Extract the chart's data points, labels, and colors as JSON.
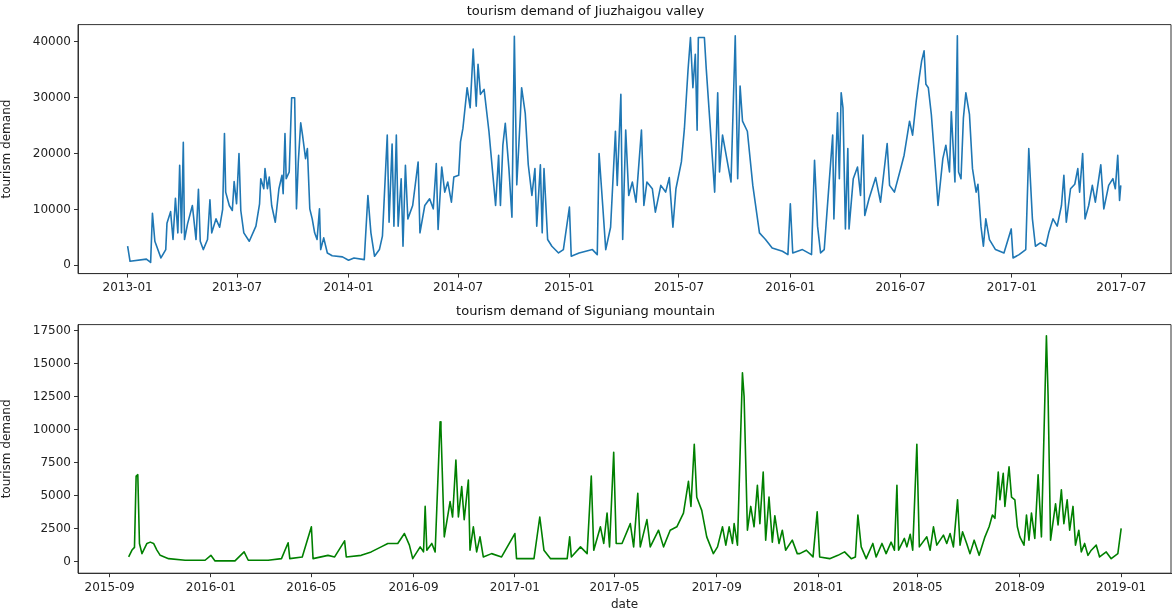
{
  "chart_data": [
    {
      "type": "line",
      "title": "tourism demand of Jiuzhaigou valley",
      "ylabel": "tourism demand",
      "x": [
        "2013-01-01",
        "2013-01-05",
        "2013-02-01",
        "2013-02-08",
        "2013-02-11",
        "2013-02-15",
        "2013-02-25",
        "2013-03-05",
        "2013-03-07",
        "2013-03-13",
        "2013-03-17",
        "2013-03-21",
        "2013-03-25",
        "2013-03-28",
        "2013-03-31",
        "2013-04-03",
        "2013-04-05",
        "2013-04-10",
        "2013-04-18",
        "2013-04-24",
        "2013-04-28",
        "2013-05-01",
        "2013-05-06",
        "2013-05-13",
        "2013-05-17",
        "2013-05-20",
        "2013-05-27",
        "2013-06-02",
        "2013-06-07",
        "2013-06-10",
        "2013-06-12",
        "2013-06-18",
        "2013-06-23",
        "2013-06-26",
        "2013-06-30",
        "2013-07-04",
        "2013-07-07",
        "2013-07-12",
        "2013-07-21",
        "2013-08-01",
        "2013-08-07",
        "2013-08-09",
        "2013-08-14",
        "2013-08-16",
        "2013-08-20",
        "2013-08-23",
        "2013-08-27",
        "2013-09-02",
        "2013-09-08",
        "2013-09-13",
        "2013-09-15",
        "2013-09-18",
        "2013-09-20",
        "2013-09-25",
        "2013-09-29",
        "2013-10-04",
        "2013-10-07",
        "2013-10-10",
        "2013-10-14",
        "2013-10-17",
        "2013-10-22",
        "2013-10-25",
        "2013-10-29",
        "2013-11-02",
        "2013-11-06",
        "2013-11-10",
        "2013-11-14",
        "2013-11-16",
        "2013-11-21",
        "2013-11-27",
        "2013-12-05",
        "2013-12-22",
        "2014-01-01",
        "2014-01-10",
        "2014-01-27",
        "2014-02-02",
        "2014-02-07",
        "2014-02-13",
        "2014-02-21",
        "2014-02-26",
        "2014-03-06",
        "2014-03-09",
        "2014-03-14",
        "2014-03-17",
        "2014-03-21",
        "2014-03-24",
        "2014-03-29",
        "2014-04-01",
        "2014-04-05",
        "2014-04-09",
        "2014-04-17",
        "2014-04-26",
        "2014-04-29",
        "2014-05-07",
        "2014-05-15",
        "2014-05-21",
        "2014-05-26",
        "2014-05-29",
        "2014-06-04",
        "2014-06-09",
        "2014-06-14",
        "2014-06-20",
        "2014-06-24",
        "2014-07-02",
        "2014-07-05",
        "2014-07-09",
        "2014-07-16",
        "2014-07-21",
        "2014-07-26",
        "2014-07-31",
        "2014-08-03",
        "2014-08-07",
        "2014-08-13",
        "2014-08-21",
        "2014-08-29",
        "2014-09-01",
        "2014-09-06",
        "2014-09-09",
        "2014-09-13",
        "2014-09-17",
        "2014-09-23",
        "2014-09-28",
        "2014-10-02",
        "2014-10-06",
        "2014-10-12",
        "2014-10-14",
        "2014-10-20",
        "2014-10-25",
        "2014-10-31",
        "2014-11-05",
        "2014-11-08",
        "2014-11-14",
        "2014-11-17",
        "2014-11-20",
        "2014-11-26",
        "2014-12-03",
        "2014-12-14",
        "2014-12-22",
        "2015-01-01",
        "2015-01-04",
        "2015-01-17",
        "2015-02-08",
        "2015-02-16",
        "2015-02-19",
        "2015-02-25",
        "2015-03-02",
        "2015-03-10",
        "2015-03-18",
        "2015-03-21",
        "2015-03-27",
        "2015-03-30",
        "2015-04-04",
        "2015-04-09",
        "2015-04-15",
        "2015-04-21",
        "2015-04-30",
        "2015-05-04",
        "2015-05-09",
        "2015-05-18",
        "2015-05-23",
        "2015-06-01",
        "2015-06-09",
        "2015-06-15",
        "2015-06-21",
        "2015-06-26",
        "2015-07-05",
        "2015-07-10",
        "2015-07-16",
        "2015-07-20",
        "2015-07-24",
        "2015-07-28",
        "2015-07-31",
        "2015-08-02",
        "2015-08-12",
        "2015-08-15",
        "2015-08-23",
        "2015-08-29",
        "2015-09-03",
        "2015-09-06",
        "2015-09-11",
        "2015-09-18",
        "2015-09-25",
        "2015-10-02",
        "2015-10-06",
        "2015-10-10",
        "2015-10-14",
        "2015-10-22",
        "2015-10-31",
        "2015-11-11",
        "2015-11-21",
        "2015-12-02",
        "2015-12-19",
        "2015-12-28",
        "2016-01-01",
        "2016-01-05",
        "2016-01-21",
        "2016-02-05",
        "2016-02-10",
        "2016-02-15",
        "2016-02-20",
        "2016-02-26",
        "2016-03-04",
        "2016-03-11",
        "2016-03-13",
        "2016-03-19",
        "2016-03-22",
        "2016-03-25",
        "2016-03-28",
        "2016-04-01",
        "2016-04-05",
        "2016-04-07",
        "2016-04-14",
        "2016-04-21",
        "2016-04-26",
        "2016-04-30",
        "2016-05-03",
        "2016-05-10",
        "2016-05-21",
        "2016-05-29",
        "2016-06-09",
        "2016-06-13",
        "2016-06-21",
        "2016-07-02",
        "2016-07-07",
        "2016-07-16",
        "2016-07-21",
        "2016-07-27",
        "2016-08-01",
        "2016-08-05",
        "2016-08-09",
        "2016-08-12",
        "2016-08-16",
        "2016-08-21",
        "2016-08-29",
        "2016-09-01",
        "2016-09-09",
        "2016-09-14",
        "2016-09-20",
        "2016-09-23",
        "2016-09-29",
        "2016-10-03",
        "2016-10-05",
        "2016-10-09",
        "2016-10-13",
        "2016-10-17",
        "2016-10-23",
        "2016-10-28",
        "2016-11-03",
        "2016-11-06",
        "2016-11-11",
        "2016-11-15",
        "2016-11-19",
        "2016-11-25",
        "2016-12-05",
        "2016-12-19",
        "2016-12-31",
        "2017-01-03",
        "2017-01-13",
        "2017-01-24",
        "2017-01-29",
        "2017-02-04",
        "2017-02-09",
        "2017-02-17",
        "2017-02-26",
        "2017-03-03",
        "2017-03-10",
        "2017-03-17",
        "2017-03-24",
        "2017-03-28",
        "2017-04-01",
        "2017-04-08",
        "2017-04-15",
        "2017-04-20",
        "2017-04-23",
        "2017-04-28",
        "2017-05-02",
        "2017-05-08",
        "2017-05-14",
        "2017-05-19",
        "2017-05-28",
        "2017-06-02",
        "2017-06-10",
        "2017-06-17",
        "2017-06-21",
        "2017-06-25",
        "2017-06-28",
        "2017-06-30"
      ],
      "series": [
        {
          "color": "#1f77b4",
          "values": [
            3400,
            700,
            1100,
            500,
            9300,
            4300,
            1300,
            2800,
            7500,
            9600,
            4600,
            12000,
            5800,
            17900,
            5800,
            22000,
            4600,
            7400,
            10700,
            4600,
            13600,
            4300,
            2800,
            4600,
            11700,
            5800,
            8300,
            6800,
            10000,
            23600,
            13100,
            10700,
            9800,
            15000,
            11000,
            20000,
            9800,
            5800,
            4300,
            7000,
            11000,
            15500,
            13700,
            17300,
            13700,
            15800,
            10700,
            7700,
            13700,
            16100,
            12800,
            23600,
            15500,
            16700,
            30000,
            30000,
            10100,
            18500,
            25500,
            23300,
            19100,
            20900,
            10100,
            8300,
            5800,
            4600,
            10100,
            2800,
            4900,
            2200,
            1700,
            1500,
            900,
            1300,
            1000,
            12500,
            5800,
            1600,
            2800,
            5200,
            23300,
            7700,
            21700,
            7000,
            23300,
            7000,
            15500,
            3400,
            17900,
            8300,
            10700,
            18500,
            5800,
            10700,
            11900,
            10100,
            18200,
            6400,
            17600,
            13100,
            14900,
            11300,
            15800,
            16100,
            22100,
            24500,
            31800,
            28200,
            38700,
            28500,
            36000,
            30600,
            31500,
            24000,
            14400,
            10700,
            19700,
            10700,
            21500,
            25400,
            17300,
            8600,
            41000,
            14400,
            27000,
            31800,
            27200,
            18000,
            12500,
            17300,
            7000,
            18000,
            5800,
            17300,
            4600,
            3400,
            2200,
            2800,
            10400,
            1600,
            2200,
            2800,
            1900,
            20000,
            10700,
            2800,
            6800,
            24000,
            14300,
            30600,
            4600,
            24200,
            12500,
            14900,
            11300,
            24200,
            10700,
            14900,
            13700,
            9500,
            14300,
            13100,
            15700,
            6800,
            13700,
            18500,
            24500,
            35000,
            40800,
            31800,
            37800,
            24200,
            40800,
            40800,
            35300,
            22700,
            13100,
            30900,
            16700,
            23300,
            19100,
            14900,
            41100,
            15500,
            32100,
            25800,
            24000,
            14300,
            5800,
            4600,
            3100,
            2500,
            1900,
            11000,
            2200,
            2800,
            1900,
            18800,
            7000,
            2200,
            2800,
            13100,
            23300,
            8300,
            27300,
            15500,
            30900,
            28200,
            6500,
            20900,
            6500,
            15500,
            17600,
            12500,
            23300,
            8900,
            11900,
            15700,
            11300,
            21800,
            14300,
            13100,
            17600,
            19700,
            25800,
            23300,
            29400,
            33600,
            36600,
            38400,
            32400,
            31800,
            27000,
            15500,
            10700,
            19100,
            21500,
            16700,
            27500,
            14900,
            41100,
            16700,
            15500,
            26400,
            30900,
            27000,
            17300,
            13100,
            14500,
            7000,
            3400,
            8300,
            4600,
            2800,
            2200,
            6500,
            1300,
            1900,
            2800,
            20900,
            8300,
            3400,
            4000,
            3400,
            5800,
            8300,
            7000,
            10700,
            16100,
            7700,
            13700,
            14500,
            17300,
            13100,
            20000,
            8300,
            10700,
            14300,
            11300,
            18000,
            10100,
            14300,
            15500,
            13700,
            19700,
            11600,
            14300
          ]
        }
      ],
      "xlim": [
        "2012-10-11",
        "2017-09-21"
      ],
      "ylim": [
        -1500,
        43100
      ],
      "xticks": [
        "2013-01",
        "2013-07",
        "2014-01",
        "2014-07",
        "2015-01",
        "2015-07",
        "2016-01",
        "2016-07",
        "2017-01",
        "2017-07"
      ],
      "yticks": [
        0,
        10000,
        20000,
        30000,
        40000
      ]
    },
    {
      "type": "line",
      "title": "tourism demand of Siguniang mountain",
      "xlabel": "date",
      "ylabel": "tourism demand",
      "x": [
        "2015-09-24",
        "2015-09-28",
        "2015-10-01",
        "2015-10-03",
        "2015-10-05",
        "2015-10-07",
        "2015-10-10",
        "2015-10-16",
        "2015-10-20",
        "2015-10-24",
        "2015-10-28",
        "2015-11-01",
        "2015-11-11",
        "2015-12-01",
        "2015-12-25",
        "2016-01-01",
        "2016-01-06",
        "2016-01-30",
        "2016-02-10",
        "2016-02-15",
        "2016-03-10",
        "2016-03-26",
        "2016-04-03",
        "2016-04-05",
        "2016-04-20",
        "2016-05-01",
        "2016-05-03",
        "2016-05-21",
        "2016-05-29",
        "2016-06-10",
        "2016-06-12",
        "2016-06-30",
        "2016-07-12",
        "2016-07-24",
        "2016-08-01",
        "2016-08-13",
        "2016-08-21",
        "2016-08-27",
        "2016-08-31",
        "2016-09-09",
        "2016-09-13",
        "2016-09-15",
        "2016-09-17",
        "2016-09-23",
        "2016-09-27",
        "2016-10-03",
        "2016-10-04",
        "2016-10-08",
        "2016-10-15",
        "2016-10-18",
        "2016-10-22",
        "2016-10-25",
        "2016-10-29",
        "2016-11-01",
        "2016-11-06",
        "2016-11-08",
        "2016-11-12",
        "2016-11-16",
        "2016-11-20",
        "2016-11-24",
        "2016-12-04",
        "2016-12-16",
        "2017-01-01",
        "2017-01-03",
        "2017-01-24",
        "2017-01-31",
        "2017-02-05",
        "2017-02-13",
        "2017-03-05",
        "2017-03-08",
        "2017-03-10",
        "2017-03-21",
        "2017-03-29",
        "2017-04-03",
        "2017-04-06",
        "2017-04-14",
        "2017-04-18",
        "2017-04-22",
        "2017-04-25",
        "2017-04-30",
        "2017-05-03",
        "2017-05-10",
        "2017-05-20",
        "2017-05-24",
        "2017-05-29",
        "2017-06-01",
        "2017-06-09",
        "2017-06-13",
        "2017-06-23",
        "2017-06-29",
        "2017-07-07",
        "2017-07-15",
        "2017-07-23",
        "2017-07-29",
        "2017-08-01",
        "2017-08-05",
        "2017-08-08",
        "2017-08-14",
        "2017-08-20",
        "2017-08-28",
        "2017-09-02",
        "2017-09-08",
        "2017-09-12",
        "2017-09-16",
        "2017-09-20",
        "2017-09-22",
        "2017-09-26",
        "2017-10-02",
        "2017-10-04",
        "2017-10-08",
        "2017-10-12",
        "2017-10-16",
        "2017-10-20",
        "2017-10-23",
        "2017-10-27",
        "2017-10-30",
        "2017-11-03",
        "2017-11-07",
        "2017-11-10",
        "2017-11-15",
        "2017-11-19",
        "2017-11-23",
        "2017-12-01",
        "2017-12-07",
        "2017-12-10",
        "2017-12-18",
        "2017-12-26",
        "2017-12-31",
        "2018-01-03",
        "2018-01-15",
        "2018-01-25",
        "2018-02-02",
        "2018-02-10",
        "2018-02-15",
        "2018-02-18",
        "2018-02-22",
        "2018-02-28",
        "2018-03-08",
        "2018-03-12",
        "2018-03-19",
        "2018-03-24",
        "2018-03-30",
        "2018-04-03",
        "2018-04-06",
        "2018-04-08",
        "2018-04-15",
        "2018-04-18",
        "2018-04-22",
        "2018-04-25",
        "2018-04-30",
        "2018-05-03",
        "2018-05-12",
        "2018-05-16",
        "2018-05-20",
        "2018-05-24",
        "2018-06-01",
        "2018-06-05",
        "2018-06-09",
        "2018-06-13",
        "2018-06-18",
        "2018-06-21",
        "2018-06-24",
        "2018-06-29",
        "2018-07-03",
        "2018-07-08",
        "2018-07-14",
        "2018-07-21",
        "2018-07-26",
        "2018-07-30",
        "2018-08-02",
        "2018-08-06",
        "2018-08-08",
        "2018-08-12",
        "2018-08-14",
        "2018-08-19",
        "2018-08-22",
        "2018-08-26",
        "2018-08-29",
        "2018-09-01",
        "2018-09-06",
        "2018-09-09",
        "2018-09-12",
        "2018-09-15",
        "2018-09-19",
        "2018-09-23",
        "2018-09-27",
        "2018-10-03",
        "2018-10-05",
        "2018-10-08",
        "2018-10-14",
        "2018-10-17",
        "2018-10-21",
        "2018-10-24",
        "2018-10-28",
        "2018-10-31",
        "2018-11-04",
        "2018-11-07",
        "2018-11-11",
        "2018-11-14",
        "2018-11-18",
        "2018-11-22",
        "2018-11-26",
        "2018-12-02",
        "2018-12-06",
        "2018-12-14",
        "2018-12-20",
        "2018-12-28",
        "2019-01-01"
      ],
      "series": [
        {
          "color": "#008000",
          "values": [
            380,
            900,
            1100,
            6500,
            6600,
            1400,
            630,
            1400,
            1500,
            1400,
            900,
            500,
            250,
            130,
            130,
            500,
            80,
            80,
            760,
            130,
            130,
            250,
            1450,
            250,
            380,
            2660,
            250,
            500,
            380,
            1600,
            380,
            500,
            760,
            1140,
            1400,
            1400,
            2150,
            1270,
            250,
            1140,
            760,
            4200,
            890,
            1400,
            760,
            10600,
            10100,
            1900,
            4560,
            3400,
            7700,
            3400,
            5700,
            3200,
            6200,
            890,
            2660,
            760,
            1900,
            380,
            630,
            380,
            2150,
            250,
            250,
            3400,
            890,
            250,
            250,
            1900,
            380,
            1140,
            630,
            6500,
            890,
            2660,
            1400,
            3700,
            1140,
            8300,
            1400,
            1400,
            2900,
            1140,
            5200,
            1140,
            3200,
            1140,
            2400,
            1140,
            2400,
            2660,
            3700,
            6100,
            4200,
            8900,
            4900,
            3900,
            1900,
            630,
            1140,
            2660,
            1270,
            2660,
            1400,
            2900,
            1270,
            14300,
            12500,
            2400,
            4200,
            2660,
            5800,
            2900,
            6800,
            1650,
            4900,
            1500,
            3500,
            1400,
            2400,
            890,
            1650,
            630,
            630,
            890,
            380,
            3800,
            380,
            250,
            500,
            760,
            250,
            380,
            3550,
            1140,
            250,
            1400,
            380,
            1400,
            630,
            1500,
            890,
            5800,
            890,
            1780,
            1140,
            2100,
            890,
            8900,
            1140,
            1900,
            890,
            2660,
            1270,
            2030,
            1400,
            2150,
            1140,
            4700,
            1270,
            2280,
            1400,
            630,
            1650,
            500,
            1900,
            2660,
            3550,
            3300,
            6800,
            4700,
            6700,
            4200,
            7200,
            4900,
            4700,
            2660,
            1900,
            1270,
            3550,
            1650,
            3700,
            1780,
            6600,
            1900,
            17100,
            12600,
            1650,
            4400,
            2800,
            5450,
            2900,
            4700,
            2400,
            4200,
            1270,
            2400,
            760,
            1400,
            500,
            890,
            1270,
            380,
            760,
            250,
            630,
            2540
          ]
        }
      ],
      "xlim": [
        "2015-07-25",
        "2019-03-02"
      ],
      "ylim": [
        -850,
        17950
      ],
      "xticks": [
        "2015-09",
        "2016-01",
        "2016-05",
        "2016-09",
        "2017-01",
        "2017-05",
        "2017-09",
        "2018-01",
        "2018-05",
        "2018-09",
        "2019-01"
      ],
      "yticks": [
        0,
        2500,
        5000,
        7500,
        10000,
        12500,
        15000,
        17500
      ]
    }
  ]
}
